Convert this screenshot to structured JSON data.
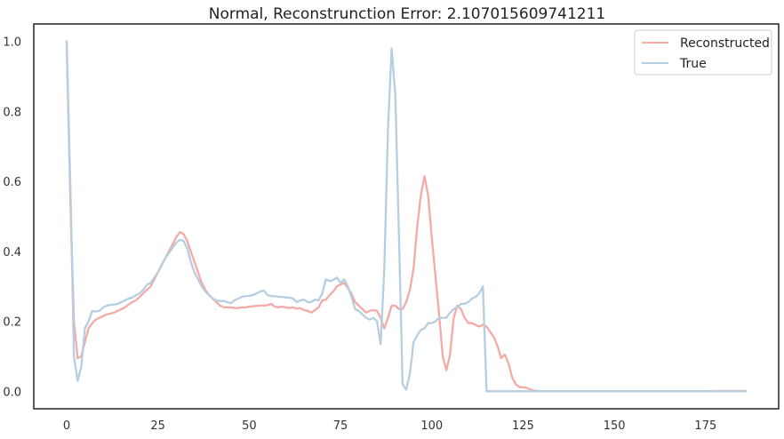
{
  "chart_data": {
    "type": "line",
    "title": "Normal, Reconstrunction Error: 2.107015609741211",
    "xlabel": "",
    "ylabel": "",
    "xlim": [
      -9,
      195
    ],
    "ylim": [
      -0.05,
      1.05
    ],
    "xticks": [
      0,
      25,
      50,
      75,
      100,
      125,
      150,
      175
    ],
    "yticks": [
      0.0,
      0.2,
      0.4,
      0.6,
      0.8,
      1.0
    ],
    "grid": false,
    "legend_position": "top-right",
    "series": [
      {
        "name": "Reconstructed",
        "color": "#f4aaa6",
        "points": [
          [
            0,
            1.0
          ],
          [
            1,
            0.55
          ],
          [
            2,
            0.2
          ],
          [
            3,
            0.095
          ],
          [
            4,
            0.1
          ],
          [
            5,
            0.14
          ],
          [
            6,
            0.18
          ],
          [
            7,
            0.195
          ],
          [
            8,
            0.205
          ],
          [
            9,
            0.21
          ],
          [
            10,
            0.215
          ],
          [
            11,
            0.22
          ],
          [
            12,
            0.222
          ],
          [
            13,
            0.225
          ],
          [
            14,
            0.23
          ],
          [
            15,
            0.235
          ],
          [
            16,
            0.24
          ],
          [
            17,
            0.248
          ],
          [
            18,
            0.255
          ],
          [
            19,
            0.26
          ],
          [
            20,
            0.27
          ],
          [
            21,
            0.28
          ],
          [
            22,
            0.29
          ],
          [
            23,
            0.3
          ],
          [
            24,
            0.32
          ],
          [
            25,
            0.34
          ],
          [
            26,
            0.36
          ],
          [
            27,
            0.38
          ],
          [
            28,
            0.4
          ],
          [
            29,
            0.42
          ],
          [
            30,
            0.44
          ],
          [
            31,
            0.455
          ],
          [
            32,
            0.45
          ],
          [
            33,
            0.43
          ],
          [
            34,
            0.4
          ],
          [
            35,
            0.37
          ],
          [
            36,
            0.34
          ],
          [
            37,
            0.31
          ],
          [
            38,
            0.29
          ],
          [
            39,
            0.275
          ],
          [
            40,
            0.265
          ],
          [
            41,
            0.255
          ],
          [
            42,
            0.245
          ],
          [
            43,
            0.24
          ],
          [
            44,
            0.24
          ],
          [
            45,
            0.24
          ],
          [
            46,
            0.238
          ],
          [
            47,
            0.238
          ],
          [
            48,
            0.24
          ],
          [
            49,
            0.24
          ],
          [
            50,
            0.242
          ],
          [
            51,
            0.243
          ],
          [
            52,
            0.244
          ],
          [
            53,
            0.245
          ],
          [
            54,
            0.245
          ],
          [
            55,
            0.246
          ],
          [
            56,
            0.25
          ],
          [
            57,
            0.242
          ],
          [
            58,
            0.24
          ],
          [
            59,
            0.242
          ],
          [
            60,
            0.24
          ],
          [
            61,
            0.238
          ],
          [
            62,
            0.24
          ],
          [
            63,
            0.236
          ],
          [
            64,
            0.238
          ],
          [
            65,
            0.232
          ],
          [
            66,
            0.23
          ],
          [
            67,
            0.225
          ],
          [
            68,
            0.232
          ],
          [
            69,
            0.24
          ],
          [
            70,
            0.26
          ],
          [
            71,
            0.262
          ],
          [
            72,
            0.275
          ],
          [
            73,
            0.285
          ],
          [
            74,
            0.3
          ],
          [
            75,
            0.305
          ],
          [
            76,
            0.31
          ],
          [
            77,
            0.295
          ],
          [
            78,
            0.28
          ],
          [
            79,
            0.255
          ],
          [
            80,
            0.245
          ],
          [
            81,
            0.235
          ],
          [
            82,
            0.225
          ],
          [
            83,
            0.23
          ],
          [
            84,
            0.232
          ],
          [
            85,
            0.23
          ],
          [
            86,
            0.21
          ],
          [
            87,
            0.18
          ],
          [
            88,
            0.21
          ],
          [
            89,
            0.245
          ],
          [
            90,
            0.245
          ],
          [
            91,
            0.235
          ],
          [
            92,
            0.235
          ],
          [
            93,
            0.255
          ],
          [
            94,
            0.29
          ],
          [
            95,
            0.35
          ],
          [
            96,
            0.47
          ],
          [
            97,
            0.56
          ],
          [
            98,
            0.615
          ],
          [
            99,
            0.56
          ],
          [
            100,
            0.44
          ],
          [
            101,
            0.33
          ],
          [
            102,
            0.22
          ],
          [
            103,
            0.1
          ],
          [
            104,
            0.06
          ],
          [
            105,
            0.105
          ],
          [
            106,
            0.21
          ],
          [
            107,
            0.245
          ],
          [
            108,
            0.235
          ],
          [
            109,
            0.21
          ],
          [
            110,
            0.195
          ],
          [
            111,
            0.195
          ],
          [
            112,
            0.19
          ],
          [
            113,
            0.185
          ],
          [
            114,
            0.19
          ],
          [
            115,
            0.185
          ],
          [
            116,
            0.17
          ],
          [
            117,
            0.155
          ],
          [
            118,
            0.13
          ],
          [
            119,
            0.095
          ],
          [
            120,
            0.105
          ],
          [
            121,
            0.08
          ],
          [
            122,
            0.04
          ],
          [
            123,
            0.02
          ],
          [
            124,
            0.012
          ],
          [
            125,
            0.012
          ],
          [
            126,
            0.01
          ],
          [
            127,
            0.005
          ],
          [
            128,
            0.002
          ],
          [
            129,
            0.001
          ],
          [
            130,
            0.0
          ],
          [
            135,
            0.0
          ],
          [
            140,
            0.0
          ],
          [
            145,
            0.0
          ],
          [
            150,
            0.0
          ],
          [
            155,
            0.0
          ],
          [
            160,
            0.0
          ],
          [
            165,
            0.0
          ],
          [
            170,
            0.0
          ],
          [
            175,
            0.0
          ],
          [
            180,
            0.001
          ],
          [
            186,
            0.001
          ]
        ]
      },
      {
        "name": "True",
        "color": "#b5cee0",
        "points": [
          [
            0,
            1.0
          ],
          [
            1,
            0.6
          ],
          [
            2,
            0.1
          ],
          [
            3,
            0.03
          ],
          [
            4,
            0.07
          ],
          [
            5,
            0.18
          ],
          [
            6,
            0.2
          ],
          [
            7,
            0.23
          ],
          [
            8,
            0.228
          ],
          [
            9,
            0.23
          ],
          [
            10,
            0.24
          ],
          [
            11,
            0.245
          ],
          [
            12,
            0.247
          ],
          [
            13,
            0.248
          ],
          [
            14,
            0.25
          ],
          [
            15,
            0.255
          ],
          [
            16,
            0.26
          ],
          [
            17,
            0.265
          ],
          [
            18,
            0.268
          ],
          [
            19,
            0.275
          ],
          [
            20,
            0.28
          ],
          [
            21,
            0.29
          ],
          [
            22,
            0.305
          ],
          [
            23,
            0.31
          ],
          [
            24,
            0.325
          ],
          [
            25,
            0.34
          ],
          [
            26,
            0.36
          ],
          [
            27,
            0.38
          ],
          [
            28,
            0.395
          ],
          [
            29,
            0.41
          ],
          [
            30,
            0.425
          ],
          [
            31,
            0.433
          ],
          [
            32,
            0.43
          ],
          [
            33,
            0.41
          ],
          [
            34,
            0.37
          ],
          [
            35,
            0.34
          ],
          [
            36,
            0.32
          ],
          [
            37,
            0.3
          ],
          [
            38,
            0.285
          ],
          [
            39,
            0.275
          ],
          [
            40,
            0.265
          ],
          [
            41,
            0.26
          ],
          [
            42,
            0.258
          ],
          [
            43,
            0.258
          ],
          [
            44,
            0.255
          ],
          [
            45,
            0.252
          ],
          [
            46,
            0.26
          ],
          [
            47,
            0.265
          ],
          [
            48,
            0.27
          ],
          [
            49,
            0.272
          ],
          [
            50,
            0.273
          ],
          [
            51,
            0.275
          ],
          [
            52,
            0.28
          ],
          [
            53,
            0.285
          ],
          [
            54,
            0.288
          ],
          [
            55,
            0.275
          ],
          [
            56,
            0.272
          ],
          [
            57,
            0.272
          ],
          [
            58,
            0.27
          ],
          [
            59,
            0.27
          ],
          [
            60,
            0.268
          ],
          [
            61,
            0.268
          ],
          [
            62,
            0.265
          ],
          [
            63,
            0.255
          ],
          [
            64,
            0.26
          ],
          [
            65,
            0.262
          ],
          [
            66,
            0.255
          ],
          [
            67,
            0.255
          ],
          [
            68,
            0.262
          ],
          [
            69,
            0.26
          ],
          [
            70,
            0.28
          ],
          [
            71,
            0.32
          ],
          [
            72,
            0.315
          ],
          [
            73,
            0.318
          ],
          [
            74,
            0.325
          ],
          [
            75,
            0.31
          ],
          [
            76,
            0.32
          ],
          [
            77,
            0.3
          ],
          [
            78,
            0.27
          ],
          [
            79,
            0.235
          ],
          [
            80,
            0.23
          ],
          [
            81,
            0.22
          ],
          [
            82,
            0.21
          ],
          [
            83,
            0.205
          ],
          [
            84,
            0.21
          ],
          [
            85,
            0.2
          ],
          [
            86,
            0.135
          ],
          [
            87,
            0.35
          ],
          [
            88,
            0.75
          ],
          [
            89,
            0.98
          ],
          [
            90,
            0.85
          ],
          [
            91,
            0.45
          ],
          [
            92,
            0.02
          ],
          [
            93,
            0.005
          ],
          [
            94,
            0.05
          ],
          [
            95,
            0.14
          ],
          [
            96,
            0.16
          ],
          [
            97,
            0.175
          ],
          [
            98,
            0.18
          ],
          [
            99,
            0.195
          ],
          [
            100,
            0.195
          ],
          [
            101,
            0.2
          ],
          [
            102,
            0.21
          ],
          [
            103,
            0.21
          ],
          [
            104,
            0.21
          ],
          [
            105,
            0.225
          ],
          [
            106,
            0.235
          ],
          [
            107,
            0.24
          ],
          [
            108,
            0.25
          ],
          [
            109,
            0.25
          ],
          [
            110,
            0.255
          ],
          [
            111,
            0.265
          ],
          [
            112,
            0.27
          ],
          [
            113,
            0.28
          ],
          [
            114,
            0.3
          ],
          [
            115,
            0.0
          ],
          [
            120,
            0.0
          ],
          [
            125,
            0.0
          ],
          [
            130,
            0.0
          ],
          [
            135,
            0.0
          ],
          [
            140,
            0.0
          ],
          [
            145,
            0.0
          ],
          [
            150,
            0.0
          ],
          [
            155,
            0.0
          ],
          [
            160,
            0.0
          ],
          [
            165,
            0.0
          ],
          [
            170,
            0.0
          ],
          [
            175,
            0.0
          ],
          [
            180,
            0.0
          ],
          [
            186,
            0.0
          ]
        ]
      }
    ]
  }
}
